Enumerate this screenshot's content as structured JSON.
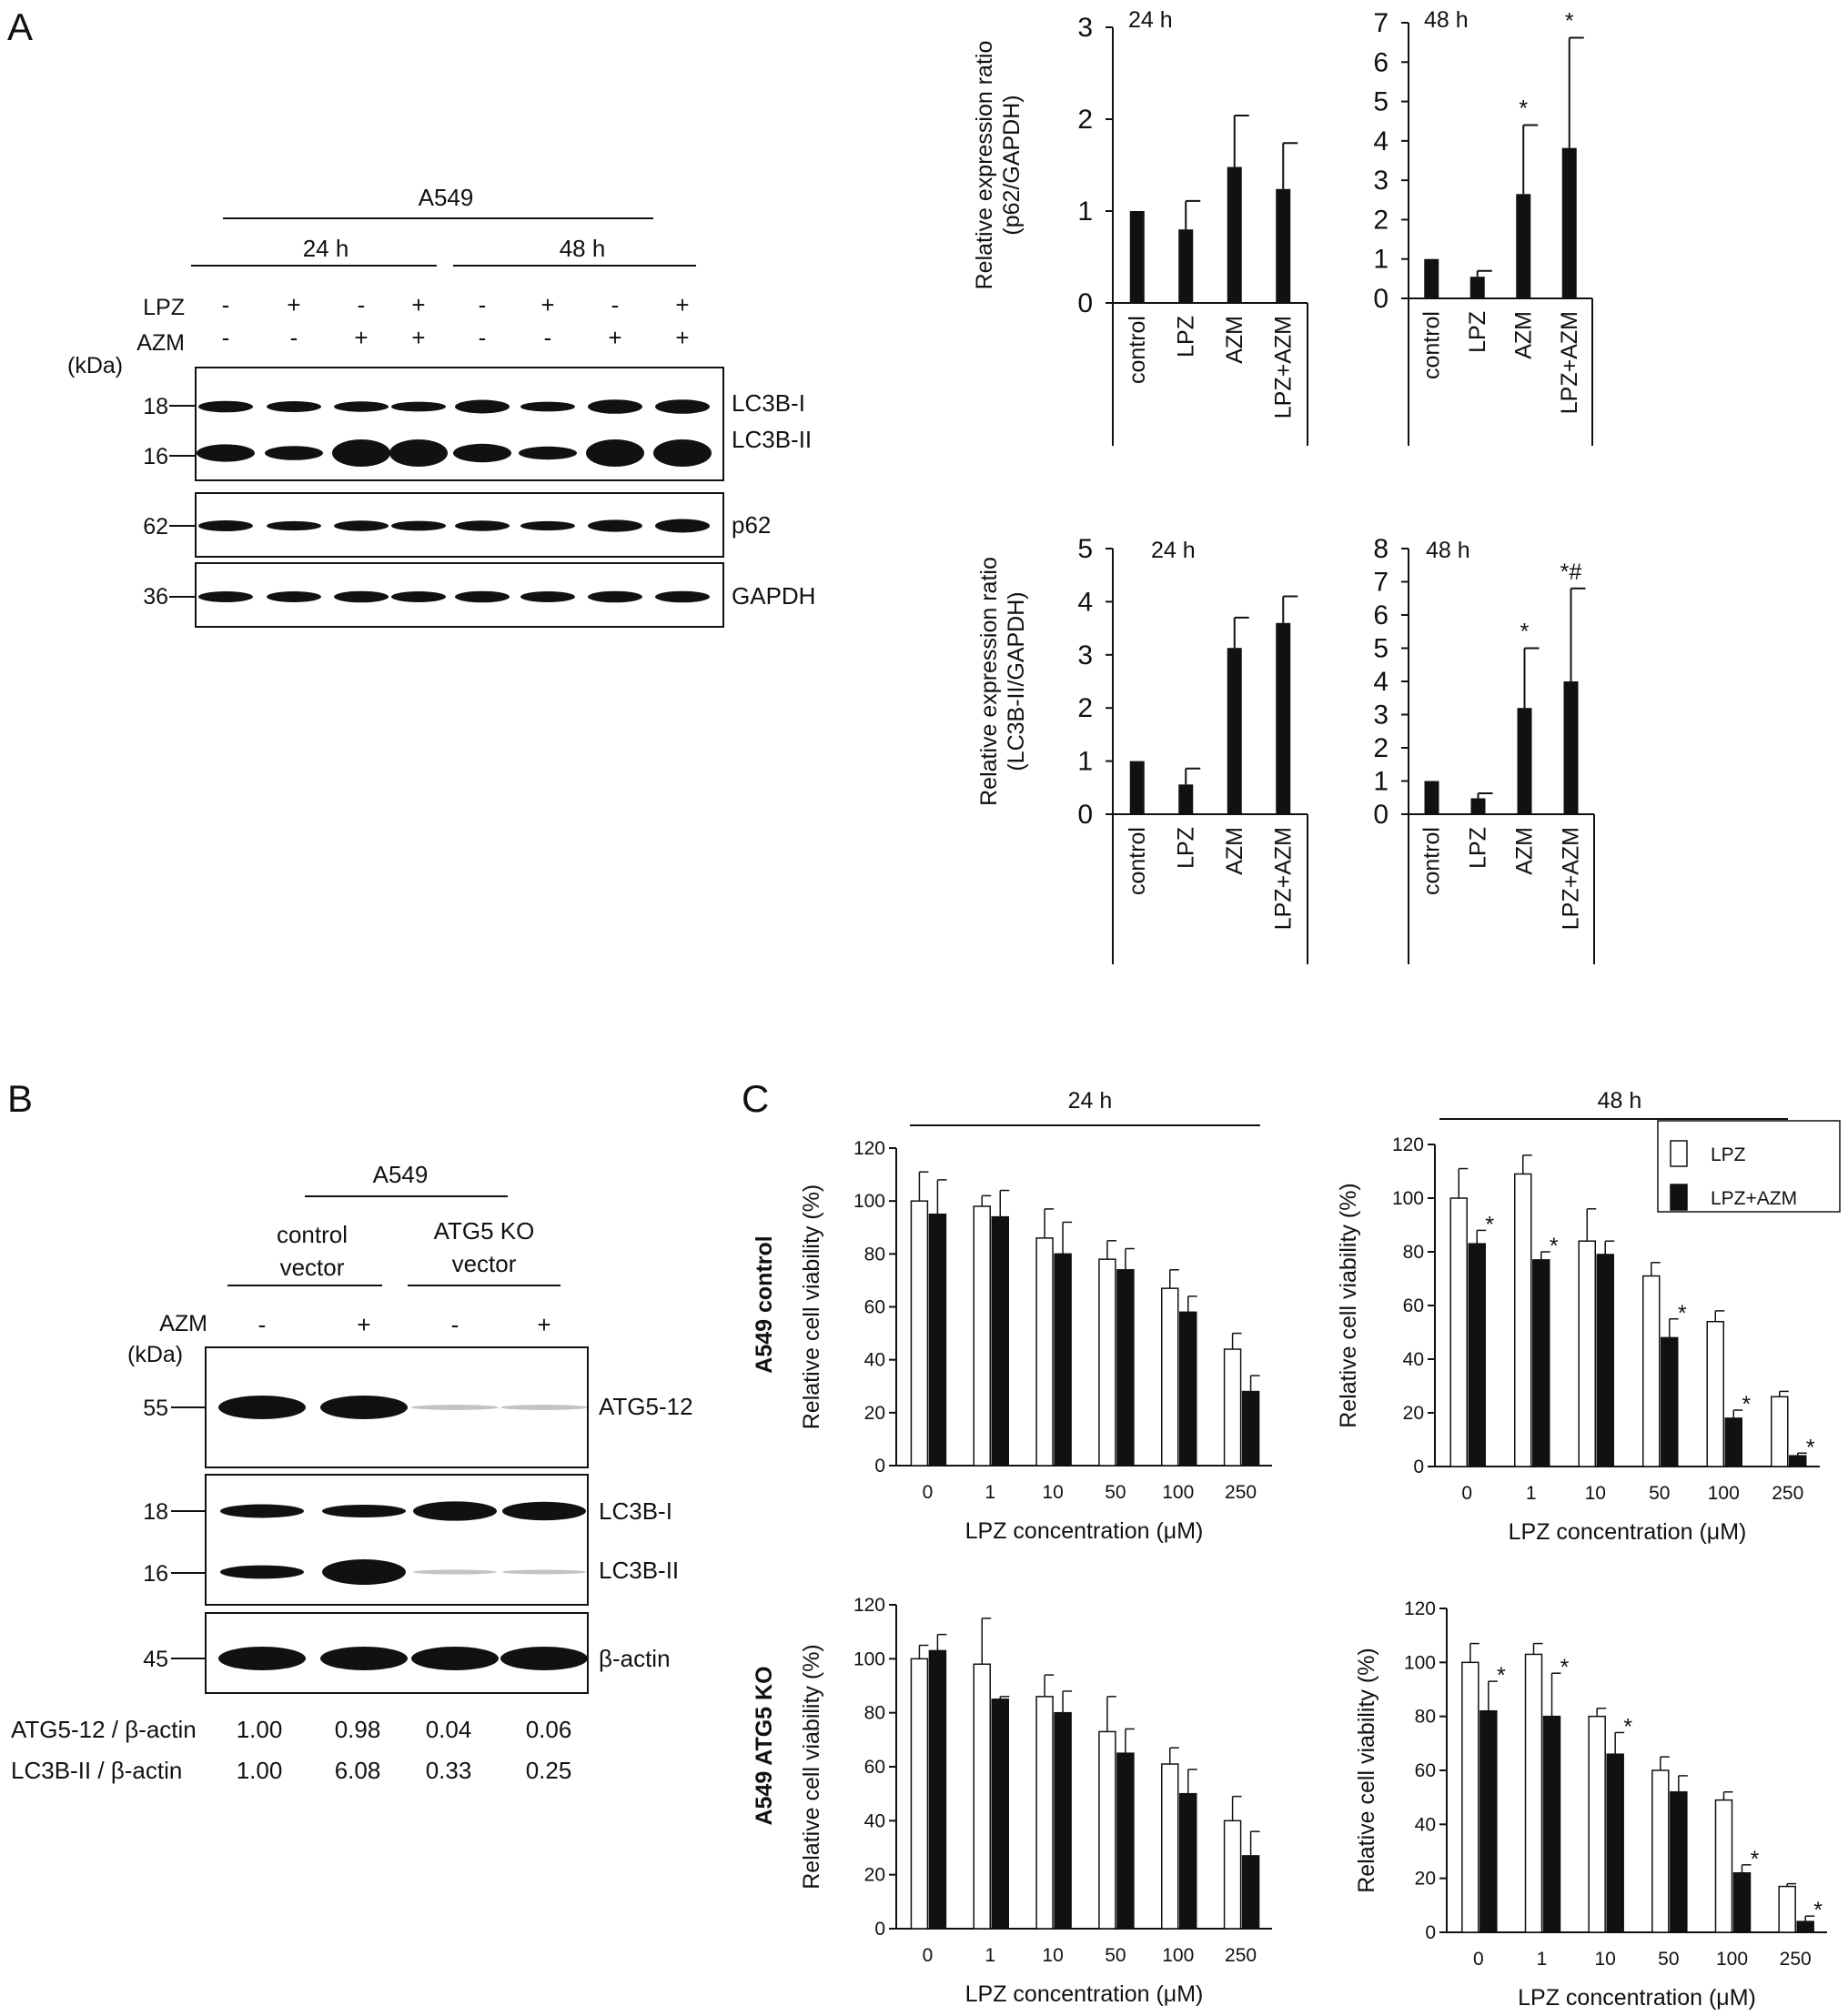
{
  "panel_labels": [
    "A",
    "B",
    "C"
  ],
  "blotA": {
    "cell_line": "A549",
    "times": [
      "24 h",
      "48 h"
    ],
    "row_labels": [
      "LPZ",
      "AZM"
    ],
    "lpz": [
      "-",
      "+",
      "-",
      "+",
      "-",
      "+",
      "-",
      "+"
    ],
    "azm": [
      "-",
      "-",
      "+",
      "+",
      "-",
      "-",
      "+",
      "+"
    ],
    "kda_label": "(kDa)",
    "markers": [
      "18",
      "16",
      "62",
      "36"
    ],
    "bands": [
      "LC3B-I",
      "LC3B-II",
      "p62",
      "GAPDH"
    ]
  },
  "blotB": {
    "cell_line": "A549",
    "groups": [
      "control\nvector",
      "ATG5 KO\nvector"
    ],
    "group1": [
      "control",
      "vector"
    ],
    "group2": [
      "ATG5 KO",
      "vector"
    ],
    "azm_label": "AZM",
    "azm": [
      "-",
      "+",
      "-",
      "+"
    ],
    "kda_label": "(kDa)",
    "markers": [
      "55",
      "18",
      "16",
      "45"
    ],
    "bands": [
      "ATG5-12",
      "LC3B-I",
      "LC3B-II",
      "β-actin"
    ],
    "ratio_rows": [
      {
        "label": "ATG5-12 / β-actin",
        "values": [
          "1.00",
          "0.98",
          "0.04",
          "0.06"
        ]
      },
      {
        "label": "LC3B-II / β-actin",
        "values": [
          "1.00",
          "6.08",
          "0.33",
          "0.25"
        ]
      }
    ]
  },
  "chart_data": [
    {
      "id": "p62-24h",
      "type": "bar",
      "title": "24 h",
      "ylabel": [
        "Relative expression ratio",
        "(p62/GAPDH)"
      ],
      "categories": [
        "control",
        "LPZ",
        "AZM",
        "LPZ+AZM"
      ],
      "values": [
        1.0,
        0.8,
        1.48,
        1.24
      ],
      "errors": [
        0,
        0.31,
        0.56,
        0.5
      ],
      "annotations": [
        "",
        "",
        "",
        ""
      ],
      "ylim": [
        0,
        3
      ],
      "yticks": [
        0,
        1,
        2,
        3
      ]
    },
    {
      "id": "p62-48h",
      "type": "bar",
      "title": "48 h",
      "ylabel": [],
      "categories": [
        "control",
        "LPZ",
        "AZM",
        "LPZ+AZM"
      ],
      "values": [
        1.0,
        0.55,
        2.65,
        3.82
      ],
      "errors": [
        0,
        0.15,
        1.75,
        2.8
      ],
      "annotations": [
        "",
        "",
        "*",
        "*"
      ],
      "ylim": [
        0,
        7
      ],
      "yticks": [
        0,
        1,
        2,
        3,
        4,
        5,
        6,
        7
      ]
    },
    {
      "id": "lc3b-24h",
      "type": "bar",
      "title": "24 h",
      "ylabel": [
        "Relative expression ratio",
        "(LC3B-II/GAPDH)"
      ],
      "categories": [
        "control",
        "LPZ",
        "AZM",
        "LPZ+AZM"
      ],
      "values": [
        1.0,
        0.56,
        3.13,
        3.6
      ],
      "errors": [
        0,
        0.3,
        0.57,
        0.5
      ],
      "annotations": [
        "",
        "",
        "",
        ""
      ],
      "ylim": [
        0,
        5
      ],
      "yticks": [
        0,
        1,
        2,
        3,
        4,
        5
      ]
    },
    {
      "id": "lc3b-48h",
      "type": "bar",
      "title": "48 h",
      "ylabel": [],
      "categories": [
        "control",
        "LPZ",
        "AZM",
        "LPZ+AZM"
      ],
      "values": [
        1.0,
        0.48,
        3.2,
        4.0
      ],
      "errors": [
        0,
        0.15,
        1.8,
        2.8
      ],
      "annotations": [
        "",
        "",
        "*",
        "*#"
      ],
      "ylim": [
        0,
        8
      ],
      "yticks": [
        0,
        1,
        2,
        3,
        4,
        5,
        6,
        7,
        8
      ]
    },
    {
      "id": "via-ctrl-24h",
      "type": "bar",
      "title": "24 h",
      "row_label": "A549  control",
      "ylabel": [
        "Relative cell viability (%)"
      ],
      "xlabel": "LPZ concentration (μM)",
      "categories": [
        "0",
        "1",
        "10",
        "50",
        "100",
        "250"
      ],
      "series": [
        {
          "name": "LPZ",
          "color": "#ffffff",
          "values": [
            100,
            98,
            86,
            78,
            67,
            44
          ],
          "errors": [
            11,
            4,
            11,
            7,
            7,
            6
          ],
          "annotations": [
            "",
            "",
            "",
            "",
            "",
            ""
          ]
        },
        {
          "name": "LPZ+AZM",
          "color": "#111111",
          "values": [
            95,
            94,
            80,
            74,
            58,
            28
          ],
          "errors": [
            13,
            10,
            12,
            8,
            6,
            6
          ],
          "annotations": [
            "",
            "",
            "",
            "",
            "",
            ""
          ]
        }
      ],
      "ylim": [
        0,
        120
      ],
      "yticks": [
        0,
        20,
        40,
        60,
        80,
        100,
        120
      ]
    },
    {
      "id": "via-ctrl-48h",
      "type": "bar",
      "title": "48 h",
      "row_label": "",
      "ylabel": [
        "Relative cell viability (%)"
      ],
      "xlabel": "LPZ concentration (μM)",
      "categories": [
        "0",
        "1",
        "10",
        "50",
        "100",
        "250"
      ],
      "series": [
        {
          "name": "LPZ",
          "color": "#ffffff",
          "values": [
            100,
            109,
            84,
            71,
            54,
            26
          ],
          "errors": [
            11,
            7,
            12,
            5,
            4,
            2
          ],
          "annotations": [
            "",
            "",
            "",
            "",
            "",
            ""
          ]
        },
        {
          "name": "LPZ+AZM",
          "color": "#111111",
          "values": [
            83,
            77,
            79,
            48,
            18,
            4
          ],
          "errors": [
            5,
            3,
            5,
            7,
            3,
            1
          ],
          "annotations": [
            "*",
            "*",
            "",
            "*",
            "*",
            "*"
          ]
        }
      ],
      "legend": [
        "LPZ",
        "LPZ+AZM"
      ],
      "ylim": [
        0,
        120
      ],
      "yticks": [
        0,
        20,
        40,
        60,
        80,
        100,
        120
      ]
    },
    {
      "id": "via-ko-24h",
      "type": "bar",
      "title": "",
      "row_label": "A549  ATG5 KO",
      "ylabel": [
        "Relative cell viability (%)"
      ],
      "xlabel": "LPZ concentration (μM)",
      "categories": [
        "0",
        "1",
        "10",
        "50",
        "100",
        "250"
      ],
      "series": [
        {
          "name": "LPZ",
          "color": "#ffffff",
          "values": [
            100,
            98,
            86,
            73,
            61,
            40
          ],
          "errors": [
            5,
            17,
            8,
            13,
            6,
            9
          ],
          "annotations": [
            "",
            "",
            "",
            "",
            "",
            ""
          ]
        },
        {
          "name": "LPZ+AZM",
          "color": "#111111",
          "values": [
            103,
            85,
            80,
            65,
            50,
            27
          ],
          "errors": [
            6,
            1,
            8,
            9,
            9,
            9
          ],
          "annotations": [
            "",
            "",
            "",
            "",
            "",
            ""
          ]
        }
      ],
      "ylim": [
        0,
        120
      ],
      "yticks": [
        0,
        20,
        40,
        60,
        80,
        100,
        120
      ]
    },
    {
      "id": "via-ko-48h",
      "type": "bar",
      "title": "",
      "row_label": "",
      "ylabel": [
        "Relative cell viability (%)"
      ],
      "xlabel": "LPZ concentration (μM)",
      "categories": [
        "0",
        "1",
        "10",
        "50",
        "100",
        "250"
      ],
      "series": [
        {
          "name": "LPZ",
          "color": "#ffffff",
          "values": [
            100,
            103,
            80,
            60,
            49,
            17
          ],
          "errors": [
            7,
            4,
            3,
            5,
            3,
            1
          ],
          "annotations": [
            "",
            "",
            "",
            "",
            "",
            ""
          ]
        },
        {
          "name": "LPZ+AZM",
          "color": "#111111",
          "values": [
            82,
            80,
            66,
            52,
            22,
            4
          ],
          "errors": [
            11,
            16,
            8,
            6,
            3,
            2
          ],
          "annotations": [
            "*",
            "*",
            "*",
            "",
            "*",
            "*"
          ]
        }
      ],
      "ylim": [
        0,
        120
      ],
      "yticks": [
        0,
        20,
        40,
        60,
        80,
        100,
        120
      ]
    }
  ]
}
